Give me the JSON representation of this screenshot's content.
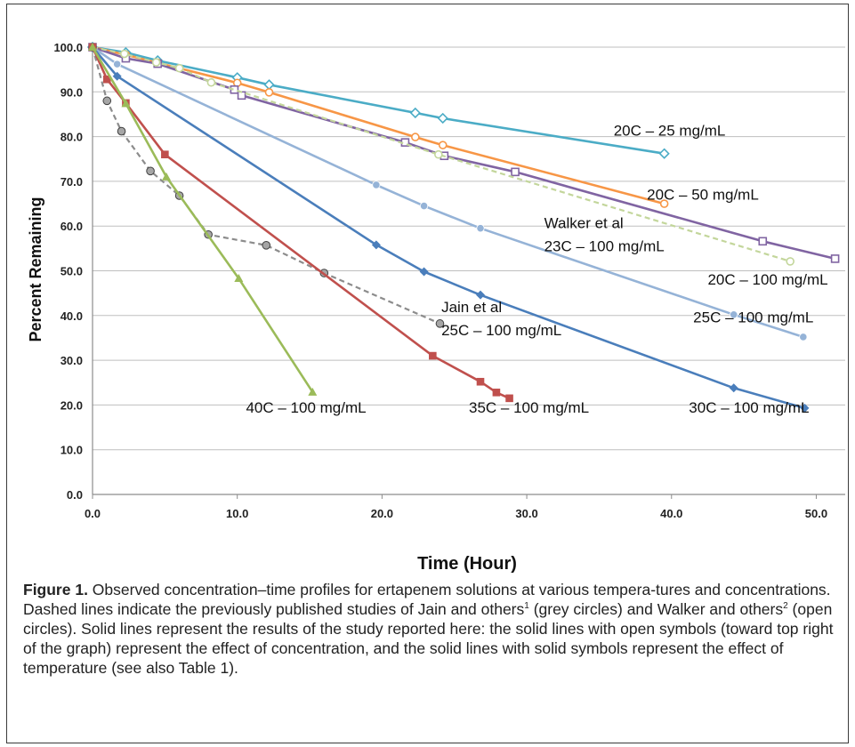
{
  "chart_data": {
    "type": "line",
    "xlabel": "Time (Hour)",
    "ylabel": "Percent Remaining",
    "xlim": [
      0,
      52
    ],
    "ylim": [
      0,
      100
    ],
    "x_ticks": [
      "0.0",
      "10.0",
      "20.0",
      "30.0",
      "40.0",
      "50.0"
    ],
    "y_ticks": [
      "0.0",
      "10.0",
      "20.0",
      "30.0",
      "40.0",
      "50.0",
      "60.0",
      "70.0",
      "80.0",
      "90.0",
      "100.0"
    ],
    "grid": "horizontal",
    "series": [
      {
        "label_lines": [
          "20C – 25 mg/mL"
        ],
        "label_anchor": [
          36,
          80.2
        ],
        "color": "#4bacc6",
        "marker": "diamond-open",
        "dash": false,
        "points": [
          [
            0,
            100
          ],
          [
            2.3,
            98.8
          ],
          [
            4.5,
            97
          ],
          [
            10,
            93.2
          ],
          [
            12.2,
            91.6
          ],
          [
            22.3,
            85.3
          ],
          [
            24.2,
            84.1
          ],
          [
            39.5,
            76.2
          ]
        ]
      },
      {
        "label_lines": [
          "20C – 50 mg/mL"
        ],
        "label_anchor": [
          38.3,
          65.9
        ],
        "color": "#f79646",
        "marker": "circle-open",
        "dash": false,
        "points": [
          [
            0,
            100
          ],
          [
            2.3,
            98.3
          ],
          [
            4.5,
            96.5
          ],
          [
            10,
            92
          ],
          [
            12.2,
            89.9
          ],
          [
            22.3,
            79.9
          ],
          [
            24.2,
            78.1
          ],
          [
            39.5,
            65
          ]
        ]
      },
      {
        "label_lines": [
          "20C – 100 mg/mL"
        ],
        "label_anchor": [
          42.5,
          46.9
        ],
        "color": "#8064a2",
        "marker": "square-open",
        "dash": false,
        "points": [
          [
            0,
            100
          ],
          [
            2.3,
            97.5
          ],
          [
            4.5,
            96.3
          ],
          [
            9.8,
            90.5
          ],
          [
            10.3,
            89.2
          ],
          [
            21.6,
            78.7
          ],
          [
            24.3,
            75.7
          ],
          [
            29.2,
            72.1
          ],
          [
            46.3,
            56.6
          ],
          [
            51.3,
            52.7
          ]
        ]
      },
      {
        "label_lines": [
          "Walker et al",
          "23C – 100 mg/mL"
        ],
        "label_anchor": [
          31.2,
          59.5
        ],
        "color": "#c3d69b",
        "marker": "circle-open",
        "dash": true,
        "points": [
          [
            0,
            100
          ],
          [
            2.2,
            98.5
          ],
          [
            4.4,
            96.6
          ],
          [
            6,
            95.3
          ],
          [
            8.2,
            92.1
          ],
          [
            23.9,
            76
          ],
          [
            48.2,
            52.1
          ]
        ]
      },
      {
        "label_lines": [
          "25C – 100 mg/mL"
        ],
        "label_anchor": [
          41.5,
          38.5
        ],
        "color": "#95b3d7",
        "marker": "circle-filled",
        "dash": false,
        "points": [
          [
            0,
            100
          ],
          [
            1.7,
            96.2
          ],
          [
            19.6,
            69.2
          ],
          [
            22.9,
            64.5
          ],
          [
            26.8,
            59.5
          ],
          [
            44.3,
            40.2
          ],
          [
            49.1,
            35.2
          ]
        ]
      },
      {
        "label_lines": [
          "30C – 100 mg/mL"
        ],
        "label_anchor": [
          41.2,
          18.3
        ],
        "color": "#4a7ebb",
        "marker": "diamond-filled",
        "dash": false,
        "points": [
          [
            0,
            100
          ],
          [
            1.7,
            93.5
          ],
          [
            19.6,
            55.8
          ],
          [
            22.9,
            49.8
          ],
          [
            26.8,
            44.6
          ],
          [
            44.3,
            23.8
          ],
          [
            49.2,
            19.3
          ]
        ]
      },
      {
        "label_lines": [
          "Jain et al",
          "25C – 100 mg/mL"
        ],
        "label_anchor": [
          24.1,
          40.8
        ],
        "color": "#8c8c8c",
        "marker": "circle-grey",
        "dash": true,
        "points": [
          [
            0,
            100
          ],
          [
            1,
            88
          ],
          [
            2,
            81.2
          ],
          [
            4,
            72.3
          ],
          [
            6,
            66.8
          ],
          [
            8,
            58.1
          ],
          [
            12,
            55.7
          ],
          [
            16,
            49.5
          ],
          [
            24,
            38.2
          ]
        ]
      },
      {
        "label_lines": [
          "35C – 100 mg/mL"
        ],
        "label_anchor": [
          26,
          18.3
        ],
        "color": "#c0504d",
        "marker": "square-filled",
        "dash": false,
        "points": [
          [
            0,
            100
          ],
          [
            1.0,
            92.8
          ],
          [
            2.3,
            87.5
          ],
          [
            5,
            76
          ],
          [
            23.5,
            31
          ],
          [
            26.8,
            25.2
          ],
          [
            27.9,
            22.8
          ],
          [
            28.8,
            21.5
          ]
        ]
      },
      {
        "label_lines": [
          "40C – 100 mg/mL"
        ],
        "label_anchor": [
          10.6,
          18.3
        ],
        "color": "#9bbb59",
        "marker": "triangle-filled",
        "dash": false,
        "points": [
          [
            0,
            100
          ],
          [
            2.3,
            87.4
          ],
          [
            5.1,
            71
          ],
          [
            10.1,
            48.3
          ],
          [
            15.2,
            22.9
          ]
        ]
      }
    ]
  },
  "caption": {
    "label": "Figure 1.",
    "text_a": " Observed concentration–time profiles for ertapenem solutions at various tempera-tures and concentrations. Dashed lines indicate the previously published studies of Jain and others",
    "ref1": "1",
    "text_b": " (grey circles) and Walker and others",
    "ref2": "2",
    "text_c": " (open circles). Solid lines represent the results of the study reported here: the solid lines with open symbols (toward top right of the graph) represent the effect of concentration, and the solid lines with solid symbols represent the effect of temperature (see also Table 1)."
  }
}
